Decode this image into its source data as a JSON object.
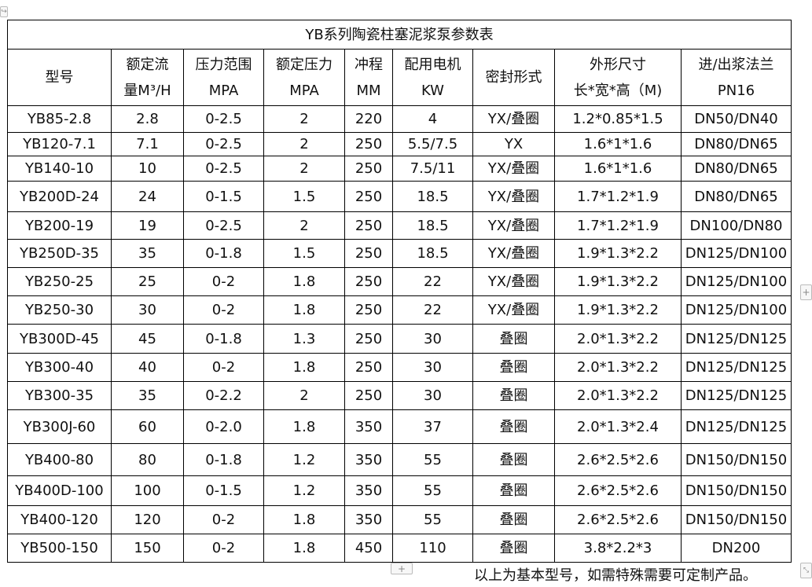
{
  "table": {
    "title": "YB系列陶瓷柱塞泥浆泵参数表",
    "headers": [
      [
        "型号",
        ""
      ],
      [
        "额定流",
        "量M³/H"
      ],
      [
        "压力范围",
        "MPA"
      ],
      [
        "额定压力",
        "MPA"
      ],
      [
        "冲程",
        "MM"
      ],
      [
        "配用电机",
        "KW"
      ],
      [
        "密封形式",
        ""
      ],
      [
        "外形尺寸",
        "长*宽*高（M)"
      ],
      [
        "进/出浆法兰",
        "PN16"
      ]
    ],
    "rows": [
      [
        "YB85-2.8",
        "2.8",
        "0-2.5",
        "2",
        "220",
        "4",
        "YX/叠圈",
        "1.2*0.85*1.5",
        "DN50/DN40"
      ],
      [
        "YB120-7.1",
        "7.1",
        "0-2.5",
        "2",
        "250",
        "5.5/7.5",
        "YX",
        "1.6*1*1.6",
        "DN80/DN65"
      ],
      [
        "YB140-10",
        "10",
        "0-2.5",
        "2",
        "250",
        "7.5/11",
        "YX/叠圈",
        "1.6*1*1.6",
        "DN80/DN65"
      ],
      [
        "YB200D-24",
        "24",
        "0-1.5",
        "1.5",
        "250",
        "18.5",
        "YX/叠圈",
        "1.7*1.2*1.9",
        "DN80/DN65"
      ],
      [
        "YB200-19",
        "19",
        "0-2.5",
        "2",
        "250",
        "18.5",
        "YX/叠圈",
        "1.7*1.2*1.9",
        "DN100/DN80"
      ],
      [
        "YB250D-35",
        "35",
        "0-1.8",
        "1.5",
        "250",
        "18.5",
        "YX/叠圈",
        "1.9*1.3*2.2",
        "DN125/DN100"
      ],
      [
        "YB250-25",
        "25",
        "0-2",
        "1.8",
        "250",
        "22",
        "YX/叠圈",
        "1.9*1.3*2.2",
        "DN125/DN100"
      ],
      [
        "YB250-30",
        "30",
        "0-2",
        "1.8",
        "250",
        "22",
        "YX/叠圈",
        "1.9*1.3*2.2",
        "DN125/DN100"
      ],
      [
        "YB300D-45",
        "45",
        "0-1.8",
        "1.3",
        "250",
        "30",
        "叠圈",
        "2.0*1.3*2.2",
        "DN125/DN125"
      ],
      [
        "YB300-40",
        "40",
        "0-2",
        "1.8",
        "250",
        "30",
        "叠圈",
        "2.0*1.3*2.2",
        "DN125/DN125"
      ],
      [
        "YB300-35",
        "35",
        "0-2.2",
        "2",
        "250",
        "30",
        "叠圈",
        "2.0*1.3*2.2",
        "DN125/DN125"
      ],
      [
        "YB300J-60",
        "60",
        "0-2.0",
        "1.8",
        "350",
        "37",
        "叠圈",
        "2.0*1.3*2.4",
        "DN125/DN125"
      ],
      [
        "YB400-80",
        "80",
        "0-1.8",
        "1.2",
        "350",
        "55",
        "叠圈",
        "2.6*2.5*2.6",
        "DN150/DN150"
      ],
      [
        "YB400D-100",
        "100",
        "0-1.5",
        "1.2",
        "350",
        "55",
        "叠圈",
        "2.6*2.5*2.6",
        "DN150/DN150"
      ],
      [
        "YB400-120",
        "120",
        "0-2",
        "1.8",
        "350",
        "55",
        "叠圈",
        "2.6*2.5*2.6",
        "DN150/DN150"
      ],
      [
        "YB500-150",
        "150",
        "0-2",
        "1.8",
        "450",
        "110",
        "叠圈",
        "3.8*2.2*3",
        "DN200"
      ]
    ]
  },
  "note": "以上为基本型号，如需特殊需要可定制产品。",
  "controls": {
    "add_row": "+",
    "add_column": "+",
    "move": "↪",
    "resize": "⤡"
  }
}
